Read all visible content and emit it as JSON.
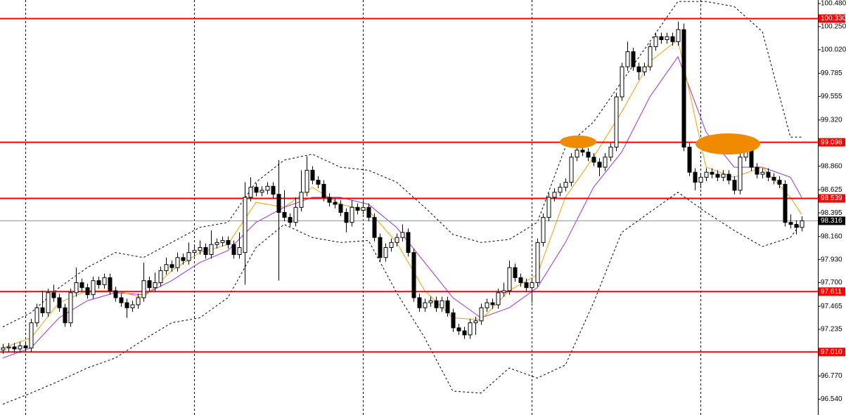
{
  "chart_data": {
    "type": "candlestick",
    "ohlc": [
      [
        97.03,
        97.09,
        96.99,
        97.05
      ],
      [
        97.05,
        97.1,
        97.01,
        97.06
      ],
      [
        97.06,
        97.1,
        97.0,
        97.04
      ],
      [
        97.04,
        97.11,
        97.0,
        97.07
      ],
      [
        97.07,
        97.11,
        97.01,
        97.05
      ],
      [
        97.05,
        97.34,
        97.01,
        97.3
      ],
      [
        97.3,
        97.49,
        97.26,
        97.45
      ],
      [
        97.45,
        97.62,
        97.36,
        97.4
      ],
      [
        97.4,
        97.64,
        97.36,
        97.6
      ],
      [
        97.6,
        97.68,
        97.51,
        97.55
      ],
      [
        97.55,
        97.59,
        97.41,
        97.45
      ],
      [
        97.45,
        97.49,
        97.26,
        97.3
      ],
      [
        97.3,
        97.64,
        97.26,
        97.6
      ],
      [
        97.6,
        97.85,
        97.56,
        97.7
      ],
      [
        97.7,
        97.74,
        97.61,
        97.65
      ],
      [
        97.65,
        97.69,
        97.54,
        97.58
      ],
      [
        97.58,
        97.76,
        97.54,
        97.72
      ],
      [
        97.72,
        97.76,
        97.64,
        97.68
      ],
      [
        97.68,
        97.79,
        97.64,
        97.75
      ],
      [
        97.75,
        97.79,
        97.58,
        97.62
      ],
      [
        97.62,
        97.66,
        97.51,
        97.55
      ],
      [
        97.55,
        97.59,
        97.46,
        97.5
      ],
      [
        97.5,
        97.54,
        97.35,
        97.45
      ],
      [
        97.45,
        97.52,
        97.41,
        97.48
      ],
      [
        97.48,
        97.59,
        97.44,
        97.55
      ],
      [
        97.55,
        97.9,
        97.51,
        97.72
      ],
      [
        97.72,
        97.76,
        97.61,
        97.65
      ],
      [
        97.65,
        97.8,
        97.61,
        97.7
      ],
      [
        97.7,
        97.86,
        97.66,
        97.82
      ],
      [
        97.82,
        97.95,
        97.78,
        97.88
      ],
      [
        97.88,
        97.92,
        97.81,
        97.85
      ],
      [
        97.85,
        98.0,
        97.81,
        97.95
      ],
      [
        97.95,
        97.99,
        97.88,
        97.92
      ],
      [
        97.92,
        98.1,
        97.88,
        98.0
      ],
      [
        98.0,
        98.06,
        97.96,
        98.02
      ],
      [
        98.02,
        98.12,
        97.98,
        98.05
      ],
      [
        98.05,
        98.09,
        97.94,
        97.98
      ],
      [
        97.98,
        98.22,
        97.94,
        98.08
      ],
      [
        98.08,
        98.14,
        98.04,
        98.1
      ],
      [
        98.1,
        98.16,
        98.06,
        98.12
      ],
      [
        98.12,
        98.16,
        98.04,
        98.08
      ],
      [
        98.08,
        98.12,
        97.94,
        97.98
      ],
      [
        97.98,
        98.2,
        97.94,
        98.05
      ],
      [
        98.0,
        98.7,
        97.68,
        98.55
      ],
      [
        98.55,
        98.75,
        98.51,
        98.65
      ],
      [
        98.65,
        98.69,
        98.56,
        98.6
      ],
      [
        98.6,
        98.66,
        98.56,
        98.62
      ],
      [
        98.62,
        98.7,
        98.58,
        98.66
      ],
      [
        98.66,
        98.7,
        98.54,
        98.58
      ],
      [
        98.58,
        98.92,
        97.72,
        98.4
      ],
      [
        98.4,
        98.62,
        98.31,
        98.35
      ],
      [
        98.35,
        98.39,
        98.26,
        98.3
      ],
      [
        98.3,
        98.55,
        98.26,
        98.45
      ],
      [
        98.45,
        98.82,
        98.41,
        98.6
      ],
      [
        98.6,
        98.96,
        98.56,
        98.82
      ],
      [
        98.82,
        98.86,
        98.68,
        98.72
      ],
      [
        98.72,
        98.76,
        98.64,
        98.68
      ],
      [
        98.68,
        98.72,
        98.51,
        98.55
      ],
      [
        98.55,
        98.59,
        98.46,
        98.5
      ],
      [
        98.5,
        98.54,
        98.44,
        98.48
      ],
      [
        98.48,
        98.52,
        98.36,
        98.4
      ],
      [
        98.4,
        98.44,
        98.2,
        98.3
      ],
      [
        98.3,
        98.52,
        98.26,
        98.45
      ],
      [
        98.45,
        98.49,
        98.38,
        98.42
      ],
      [
        98.42,
        98.52,
        98.38,
        98.45
      ],
      [
        98.45,
        98.49,
        98.31,
        98.35
      ],
      [
        98.35,
        98.39,
        98.11,
        98.15
      ],
      [
        98.15,
        98.19,
        97.91,
        97.95
      ],
      [
        97.95,
        98.09,
        97.91,
        98.05
      ],
      [
        98.05,
        98.14,
        98.01,
        98.1
      ],
      [
        98.1,
        98.19,
        98.06,
        98.15
      ],
      [
        98.15,
        98.28,
        98.11,
        98.2
      ],
      [
        98.2,
        98.24,
        97.96,
        98.0
      ],
      [
        98.0,
        98.04,
        97.51,
        97.55
      ],
      [
        97.55,
        97.59,
        97.41,
        97.45
      ],
      [
        97.45,
        97.54,
        97.41,
        97.5
      ],
      [
        97.5,
        97.56,
        97.46,
        97.52
      ],
      [
        97.52,
        97.56,
        97.41,
        97.45
      ],
      [
        97.45,
        97.56,
        97.41,
        97.52
      ],
      [
        97.52,
        97.56,
        97.36,
        97.4
      ],
      [
        97.4,
        97.44,
        97.21,
        97.25
      ],
      [
        97.25,
        97.29,
        97.18,
        97.22
      ],
      [
        97.22,
        97.26,
        97.14,
        97.18
      ],
      [
        97.18,
        97.34,
        97.14,
        97.3
      ],
      [
        97.3,
        97.36,
        97.18,
        97.32
      ],
      [
        97.32,
        97.49,
        97.28,
        97.45
      ],
      [
        97.45,
        97.54,
        97.41,
        97.5
      ],
      [
        97.5,
        97.54,
        97.44,
        97.48
      ],
      [
        97.48,
        97.64,
        97.44,
        97.6
      ],
      [
        97.6,
        97.7,
        97.56,
        97.62
      ],
      [
        97.62,
        97.92,
        97.58,
        97.85
      ],
      [
        97.85,
        97.89,
        97.71,
        97.75
      ],
      [
        97.75,
        97.79,
        97.66,
        97.7
      ],
      [
        97.7,
        97.74,
        97.61,
        97.65
      ],
      [
        97.65,
        97.74,
        97.5,
        97.7
      ],
      [
        97.7,
        98.14,
        97.66,
        98.1
      ],
      [
        98.1,
        98.39,
        98.06,
        98.35
      ],
      [
        98.35,
        98.59,
        98.31,
        98.55
      ],
      [
        98.55,
        98.64,
        98.51,
        98.6
      ],
      [
        98.6,
        98.69,
        98.56,
        98.65
      ],
      [
        98.65,
        98.74,
        98.61,
        98.7
      ],
      [
        98.7,
        98.99,
        98.66,
        98.95
      ],
      [
        98.95,
        99.12,
        98.91,
        99.02
      ],
      [
        99.02,
        99.06,
        98.96,
        99.0
      ],
      [
        99.0,
        99.04,
        98.91,
        98.95
      ],
      [
        98.95,
        98.99,
        98.86,
        98.9
      ],
      [
        98.9,
        98.94,
        98.76,
        98.85
      ],
      [
        98.85,
        98.99,
        98.81,
        98.95
      ],
      [
        98.95,
        99.09,
        98.91,
        99.05
      ],
      [
        99.05,
        99.59,
        99.01,
        99.55
      ],
      [
        99.55,
        99.89,
        99.51,
        99.85
      ],
      [
        99.85,
        100.1,
        99.81,
        100.0
      ],
      [
        100.0,
        100.04,
        99.81,
        99.85
      ],
      [
        99.85,
        99.89,
        99.72,
        99.8
      ],
      [
        99.8,
        99.89,
        99.76,
        99.85
      ],
      [
        99.85,
        100.09,
        99.81,
        100.05
      ],
      [
        100.05,
        100.19,
        100.01,
        100.15
      ],
      [
        100.15,
        100.19,
        100.08,
        100.12
      ],
      [
        100.12,
        100.19,
        100.08,
        100.15
      ],
      [
        100.15,
        100.19,
        100.06,
        100.1
      ],
      [
        100.1,
        100.3,
        100.06,
        100.22
      ],
      [
        100.22,
        100.28,
        99.01,
        99.05
      ],
      [
        99.05,
        99.09,
        98.76,
        98.8
      ],
      [
        98.8,
        98.84,
        98.62,
        98.7
      ],
      [
        98.7,
        98.79,
        98.64,
        98.75
      ],
      [
        98.75,
        98.84,
        98.71,
        98.8
      ],
      [
        98.8,
        98.84,
        98.74,
        98.78
      ],
      [
        98.78,
        98.82,
        98.71,
        98.75
      ],
      [
        98.75,
        98.82,
        98.71,
        98.78
      ],
      [
        98.78,
        98.82,
        98.68,
        98.72
      ],
      [
        98.72,
        98.76,
        98.58,
        98.62
      ],
      [
        98.62,
        98.99,
        98.58,
        98.95
      ],
      [
        98.95,
        99.08,
        98.91,
        99.02
      ],
      [
        99.02,
        99.06,
        98.81,
        98.85
      ],
      [
        98.85,
        98.89,
        98.74,
        98.78
      ],
      [
        98.78,
        98.84,
        98.74,
        98.8
      ],
      [
        98.8,
        98.84,
        98.71,
        98.75
      ],
      [
        98.75,
        98.79,
        98.68,
        98.72
      ],
      [
        98.72,
        98.76,
        98.64,
        98.68
      ],
      [
        98.68,
        98.72,
        98.26,
        98.3
      ],
      [
        98.3,
        98.38,
        98.24,
        98.28
      ],
      [
        98.28,
        98.32,
        98.18,
        98.25
      ],
      [
        98.25,
        98.36,
        98.21,
        98.316
      ]
    ],
    "up_color": "#ffffff",
    "down_color": "#000000",
    "ylim": [
      96.382,
      100.515
    ],
    "yticks": [
      {
        "value": 100.48,
        "label": "100.480"
      },
      {
        "value": 100.25,
        "label": "100.250"
      },
      {
        "value": 100.02,
        "label": "100.020"
      },
      {
        "value": 99.785,
        "label": "99.785"
      },
      {
        "value": 99.555,
        "label": "99.555"
      },
      {
        "value": 99.32,
        "label": "99.320"
      },
      {
        "value": 98.86,
        "label": "98.860"
      },
      {
        "value": 98.625,
        "label": "98.625"
      },
      {
        "value": 98.395,
        "label": "98.395"
      },
      {
        "value": 98.16,
        "label": "98.160"
      },
      {
        "value": 97.93,
        "label": "97.930"
      },
      {
        "value": 97.7,
        "label": "97.700"
      },
      {
        "value": 97.465,
        "label": "97.465"
      },
      {
        "value": 97.235,
        "label": "97.235"
      },
      {
        "value": 96.77,
        "label": "96.770"
      },
      {
        "value": 96.54,
        "label": "96.540"
      }
    ],
    "xticks": [
      4,
      34,
      64,
      94,
      124
    ],
    "overlay_x": [
      0,
      5,
      10,
      15,
      20,
      25,
      30,
      35,
      40,
      45,
      50,
      55,
      60,
      65,
      70,
      75,
      80,
      85,
      90,
      95,
      100,
      105,
      110,
      115,
      120,
      125,
      130,
      135,
      140,
      142
    ],
    "overlays": [
      {
        "color": "#000000",
        "dashed": true,
        "values": [
          97.26,
          97.4,
          97.65,
          97.85,
          98.0,
          97.95,
          98.1,
          98.25,
          98.3,
          98.7,
          98.92,
          98.98,
          98.85,
          98.82,
          98.7,
          98.45,
          98.18,
          98.1,
          98.13,
          98.3,
          99.05,
          99.3,
          99.7,
          100.1,
          100.5,
          100.5,
          100.45,
          100.2,
          99.15,
          99.15
        ]
      },
      {
        "color": "#000000",
        "dashed": true,
        "values": [
          96.49,
          96.6,
          96.72,
          96.85,
          96.95,
          97.13,
          97.3,
          97.35,
          97.55,
          98.05,
          98.28,
          98.15,
          98.1,
          98.12,
          97.6,
          97.15,
          96.62,
          96.6,
          96.85,
          96.75,
          96.88,
          97.5,
          98.2,
          98.4,
          98.6,
          98.4,
          98.22,
          98.06,
          98.15,
          98.3
        ]
      },
      {
        "color": "#9b30d9",
        "dashed": false,
        "values": [
          96.95,
          97.05,
          97.35,
          97.52,
          97.6,
          97.58,
          97.72,
          97.9,
          98.02,
          98.3,
          98.45,
          98.55,
          98.55,
          98.48,
          98.25,
          97.9,
          97.55,
          97.35,
          97.45,
          97.65,
          98.1,
          98.65,
          99.0,
          99.55,
          99.95,
          99.2,
          98.85,
          98.85,
          98.75,
          98.55
        ]
      },
      {
        "color": "#f0a000",
        "dashed": false,
        "values": [
          97.05,
          97.15,
          97.5,
          97.62,
          97.62,
          97.55,
          97.82,
          98.0,
          98.08,
          98.5,
          98.45,
          98.65,
          98.48,
          98.42,
          98.1,
          97.62,
          97.35,
          97.33,
          97.62,
          97.78,
          98.55,
          98.95,
          99.4,
          99.9,
          100.12,
          98.85,
          98.75,
          98.85,
          98.55,
          98.38
        ]
      }
    ],
    "levels": [
      {
        "value": 100.33,
        "label": "100.330"
      },
      {
        "value": 99.098,
        "label": "99.098"
      },
      {
        "value": 98.539,
        "label": "98.539"
      },
      {
        "value": 97.611,
        "label": "97.611"
      },
      {
        "value": 97.01,
        "label": "97.010"
      }
    ],
    "level_color": "#ff0000",
    "last_price": {
      "value": 98.316,
      "label": "98.316"
    }
  }
}
